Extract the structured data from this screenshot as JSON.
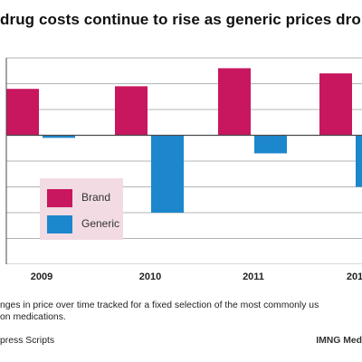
{
  "title": "drug costs continue to rise as generic prices drop",
  "note_lines": [
    "nges in price over time tracked for a fixed selection of the most commonly us",
    "on medications."
  ],
  "source": "press Scripts",
  "credit": "IMNG Med",
  "colors": {
    "brand": "#c8165f",
    "generic": "#1c87cc",
    "grid": "#b0b4b8",
    "axis": "#4a4a4a",
    "legend_bg": "#f2dbe3"
  },
  "chart_data": {
    "type": "bar",
    "categories": [
      "2009",
      "2010",
      "2011",
      "201"
    ],
    "series": [
      {
        "name": "Brand",
        "values": [
          9.0,
          9.5,
          13.0,
          12.0
        ]
      },
      {
        "name": "Generic",
        "values": [
          -0.5,
          -15.0,
          -3.5,
          -10.0
        ]
      }
    ],
    "title": "drug costs continue to rise as generic prices drop",
    "xlabel": "",
    "ylabel": "",
    "ylim": [
      -25,
      15
    ],
    "grid": true,
    "legend": [
      "Brand",
      "Generic"
    ],
    "legend_position": "lower-left"
  }
}
